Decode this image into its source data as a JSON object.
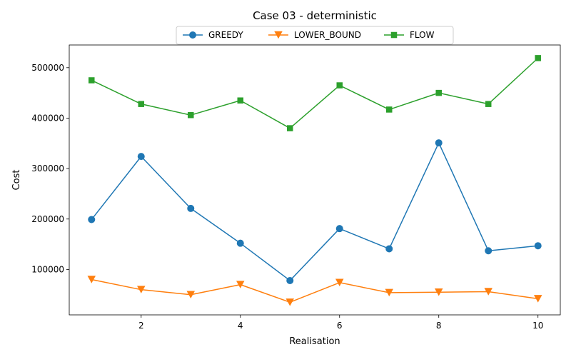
{
  "chart_data": {
    "type": "line",
    "title": "Case 03 - deterministic",
    "xlabel": "Realisation",
    "ylabel": "Cost",
    "x": [
      1,
      2,
      3,
      4,
      5,
      6,
      7,
      8,
      9,
      10
    ],
    "xlim": [
      0.55,
      10.45
    ],
    "ylim": [
      10000,
      545000
    ],
    "xticks": [
      2,
      4,
      6,
      8,
      10
    ],
    "yticks": [
      100000,
      200000,
      300000,
      400000,
      500000
    ],
    "grid": false,
    "legend_position": "top-center",
    "series": [
      {
        "name": "GREEDY",
        "color": "#1f77b4",
        "marker": "circle",
        "values": [
          199000,
          324000,
          221000,
          152000,
          78000,
          181000,
          141000,
          351000,
          137000,
          147000
        ]
      },
      {
        "name": "LOWER_BOUND",
        "color": "#ff7f0e",
        "marker": "triangle-down",
        "values": [
          80000,
          60000,
          50000,
          70000,
          35000,
          74000,
          54000,
          55000,
          56000,
          42000
        ]
      },
      {
        "name": "FLOW",
        "color": "#2ca02c",
        "marker": "square",
        "values": [
          475000,
          428000,
          406000,
          435000,
          380000,
          465000,
          417000,
          450000,
          428000,
          519000
        ]
      }
    ]
  }
}
